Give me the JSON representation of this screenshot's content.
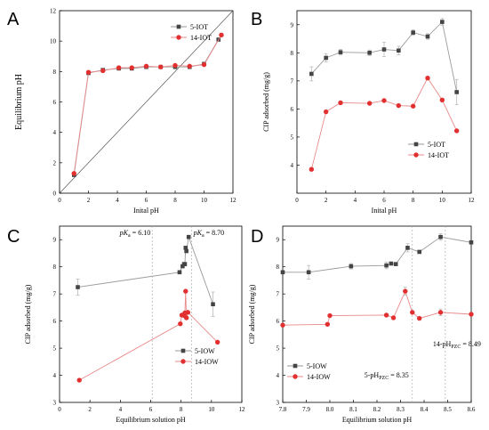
{
  "colors": {
    "series_black": "#444444",
    "series_red": "#e23030",
    "line_black": "#9a9a9a",
    "line_red": "#e88a8a",
    "frame": "#000000",
    "dash": "#b0b0b0"
  },
  "chart_data": [
    {
      "panel": "A",
      "type": "line",
      "xlabel": "Inital pH",
      "ylabel": "Equilibrium pH",
      "xlim": [
        0,
        12
      ],
      "ylim": [
        0,
        12
      ],
      "xticks": [
        0,
        2,
        4,
        6,
        8,
        10,
        12
      ],
      "yticks": [
        0,
        2,
        4,
        6,
        8,
        10,
        12
      ],
      "xtick_labels": [
        "0",
        "2",
        "4",
        "6",
        "8",
        "10",
        "12"
      ],
      "ytick_labels": [
        "0",
        "2",
        "4",
        "6",
        "8",
        "10",
        "12"
      ],
      "legend_position": "top-left",
      "reference_line": {
        "from": [
          0,
          0
        ],
        "to": [
          12,
          12
        ]
      },
      "series": [
        {
          "name": "5-IOT",
          "marker": "square",
          "color_key": "series_black",
          "x": [
            1.0,
            2.0,
            3.0,
            4.1,
            5.0,
            6.0,
            7.0,
            8.0,
            9.0,
            10.0,
            11.0
          ],
          "y": [
            1.2,
            7.9,
            8.1,
            8.2,
            8.2,
            8.3,
            8.3,
            8.3,
            8.3,
            8.5,
            10.1
          ]
        },
        {
          "name": "14-IOT",
          "marker": "circle",
          "color_key": "series_red",
          "x": [
            1.0,
            2.0,
            3.0,
            4.1,
            5.0,
            6.0,
            7.0,
            8.0,
            9.0,
            10.0,
            11.2
          ],
          "y": [
            1.3,
            7.95,
            8.05,
            8.25,
            8.25,
            8.35,
            8.3,
            8.4,
            8.35,
            8.45,
            10.4
          ]
        }
      ]
    },
    {
      "panel": "B",
      "type": "line",
      "xlabel": "Inital pH",
      "ylabel": "CIP adsorbed (mg/g)",
      "xlim": [
        0,
        12
      ],
      "ylim": [
        3,
        9.5
      ],
      "xticks": [
        0,
        2,
        4,
        6,
        8,
        10,
        12
      ],
      "yticks": [
        4,
        5,
        6,
        7,
        8,
        9
      ],
      "xtick_labels": [
        "0",
        "2",
        "4",
        "6",
        "8",
        "10",
        "12"
      ],
      "ytick_labels": [
        "4",
        "5",
        "6",
        "7",
        "8",
        "9"
      ],
      "legend_position": "bottom-right",
      "series": [
        {
          "name": "5-IOT",
          "marker": "square",
          "color_key": "series_black",
          "x": [
            1,
            2,
            3,
            5,
            6,
            7,
            8,
            9,
            10,
            11
          ],
          "y": [
            7.25,
            7.82,
            8.02,
            8.0,
            8.12,
            8.08,
            8.72,
            8.58,
            9.1,
            6.6
          ],
          "err": [
            0.25,
            0.15,
            0.1,
            0.1,
            0.25,
            0.15,
            0.1,
            0.1,
            0.12,
            0.45
          ]
        },
        {
          "name": "14-IOT",
          "marker": "circle",
          "color_key": "series_red",
          "x": [
            1,
            2,
            3,
            5,
            6,
            7,
            8,
            9,
            10,
            11
          ],
          "y": [
            3.85,
            5.9,
            6.22,
            6.2,
            6.3,
            6.12,
            6.1,
            7.1,
            6.32,
            5.22
          ]
        }
      ]
    },
    {
      "panel": "C",
      "type": "line",
      "xlabel": "Equilibrium solution pH",
      "ylabel": "CIP adsorbed (mg/g)",
      "xlim": [
        0,
        12
      ],
      "ylim": [
        3,
        9.5
      ],
      "xticks": [
        0,
        2,
        4,
        6,
        8,
        10,
        12
      ],
      "yticks": [
        3,
        4,
        5,
        6,
        7,
        8,
        9
      ],
      "xtick_labels": [
        "0",
        "2",
        "4",
        "6",
        "8",
        "10",
        "12"
      ],
      "ytick_labels": [
        "3",
        "4",
        "5",
        "6",
        "7",
        "8",
        "9"
      ],
      "legend_position": "bottom-right",
      "vlines": [
        {
          "x": 6.1,
          "label": "pK",
          "sub": "a",
          "val": " = 6.10"
        },
        {
          "x": 8.7,
          "label": "pK",
          "sub": "a",
          "val": " = 8.70"
        }
      ],
      "series": [
        {
          "name": "5-IOW",
          "marker": "square",
          "color_key": "series_black",
          "x": [
            1.2,
            7.9,
            8.1,
            8.2,
            8.25,
            8.3,
            8.35,
            8.5,
            10.1
          ],
          "y": [
            7.25,
            7.8,
            8.02,
            8.1,
            8.1,
            8.7,
            8.58,
            9.1,
            6.62
          ],
          "err": [
            0.3,
            0,
            0,
            0,
            0,
            0,
            0,
            0,
            0.45
          ]
        },
        {
          "name": "14-IOW",
          "marker": "circle",
          "color_key": "series_red",
          "x": [
            1.3,
            7.95,
            8.05,
            8.2,
            8.25,
            8.3,
            8.35,
            8.45,
            10.4
          ],
          "y": [
            3.82,
            5.9,
            6.22,
            6.2,
            6.3,
            7.1,
            6.12,
            6.32,
            5.22
          ]
        }
      ]
    },
    {
      "panel": "D",
      "type": "line",
      "xlabel": "Equilibrium solution pH",
      "ylabel": "CIP adsorbed (mg/g)",
      "xlim": [
        7.8,
        8.6
      ],
      "ylim": [
        3,
        9.5
      ],
      "xticks": [
        7.8,
        7.9,
        8.0,
        8.1,
        8.2,
        8.3,
        8.4,
        8.5,
        8.6
      ],
      "yticks": [
        3,
        4,
        5,
        6,
        7,
        8,
        9
      ],
      "xtick_labels": [
        "7.8",
        "7.9",
        "8.0",
        "8.1",
        "8.2",
        "8.3",
        "8.4",
        "8.5",
        "8.6"
      ],
      "ytick_labels": [
        "3",
        "4",
        "5",
        "6",
        "7",
        "8",
        "9"
      ],
      "legend_position": "bottom-left",
      "vlines": [
        {
          "x": 8.35,
          "label": "5-pH",
          "sub": "PZC",
          "val": " = 8.35"
        },
        {
          "x": 8.49,
          "label": "14-pH",
          "sub": "PZC",
          "val": " = 8.49"
        }
      ],
      "series": [
        {
          "name": "5-IOW",
          "marker": "square",
          "color_key": "series_black",
          "x": [
            7.8,
            7.91,
            8.09,
            8.24,
            8.26,
            8.28,
            8.33,
            8.38,
            8.47,
            8.6
          ],
          "y": [
            7.8,
            7.8,
            8.02,
            8.05,
            8.12,
            8.1,
            8.7,
            8.55,
            9.1,
            8.9
          ],
          "err": [
            0,
            0.25,
            0.1,
            0.12,
            0,
            0,
            0.15,
            0,
            0.12,
            0
          ]
        },
        {
          "name": "14-IOW",
          "marker": "circle",
          "color_key": "series_red",
          "x": [
            7.8,
            7.99,
            8.0,
            8.24,
            8.27,
            8.32,
            8.35,
            8.38,
            8.47,
            8.6
          ],
          "y": [
            5.85,
            5.88,
            6.2,
            6.22,
            6.12,
            7.1,
            6.32,
            6.1,
            6.32,
            6.25
          ],
          "err": [
            0,
            0,
            0,
            0,
            0,
            0.15,
            0,
            0,
            0.12,
            0
          ]
        }
      ]
    }
  ]
}
